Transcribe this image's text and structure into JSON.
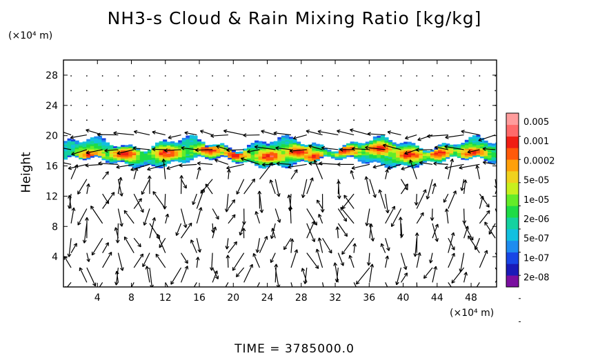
{
  "chart_data": {
    "type": "heatmap",
    "title": "NH3-s Cloud & Rain Mixing Ratio [kg/kg]",
    "x_unit": "(×10⁴ m)",
    "y_unit": "(×10⁴ m)",
    "ylabel": "Height",
    "xlim": [
      0,
      51
    ],
    "ylim": [
      0,
      30
    ],
    "x_ticks": [
      "4",
      "8",
      "12",
      "16",
      "20",
      "24",
      "28",
      "32",
      "36",
      "40",
      "44",
      "48"
    ],
    "y_ticks": [
      "4",
      "8",
      "12",
      "16",
      "20",
      "24",
      "28"
    ],
    "colorbar_labels": [
      "0.005",
      "0.001",
      "0.0002",
      "5e-05",
      "1e-05",
      "2e-06",
      "5e-07",
      "1e-07",
      "2e-08"
    ],
    "colorbar_colors": [
      "#7a0fa0",
      "#1a1ab8",
      "#1846e6",
      "#1e8cf0",
      "#12c0e0",
      "#14d2a0",
      "#1edc46",
      "#64ec28",
      "#c8f01e",
      "#f0d21e",
      "#ffa00a",
      "#ff5a0a",
      "#f01e14",
      "#ff6a6a",
      "#ff9c9c"
    ],
    "cloud_layer": {
      "bottom": 16,
      "top": 19.5
    },
    "cloud_cores": [
      [
        3,
        17.3
      ],
      [
        7,
        17.5
      ],
      [
        12,
        17.6
      ],
      [
        17,
        18
      ],
      [
        20,
        17.4
      ],
      [
        24,
        17.2
      ],
      [
        27.5,
        17.8
      ],
      [
        29.5,
        17
      ],
      [
        33,
        18
      ],
      [
        37,
        18.2
      ],
      [
        40.5,
        17.4
      ],
      [
        44,
        17.6
      ],
      [
        48,
        17.6
      ]
    ],
    "vectors": "wind field arrows"
  },
  "time_label": "TIME  =  3785000.0"
}
